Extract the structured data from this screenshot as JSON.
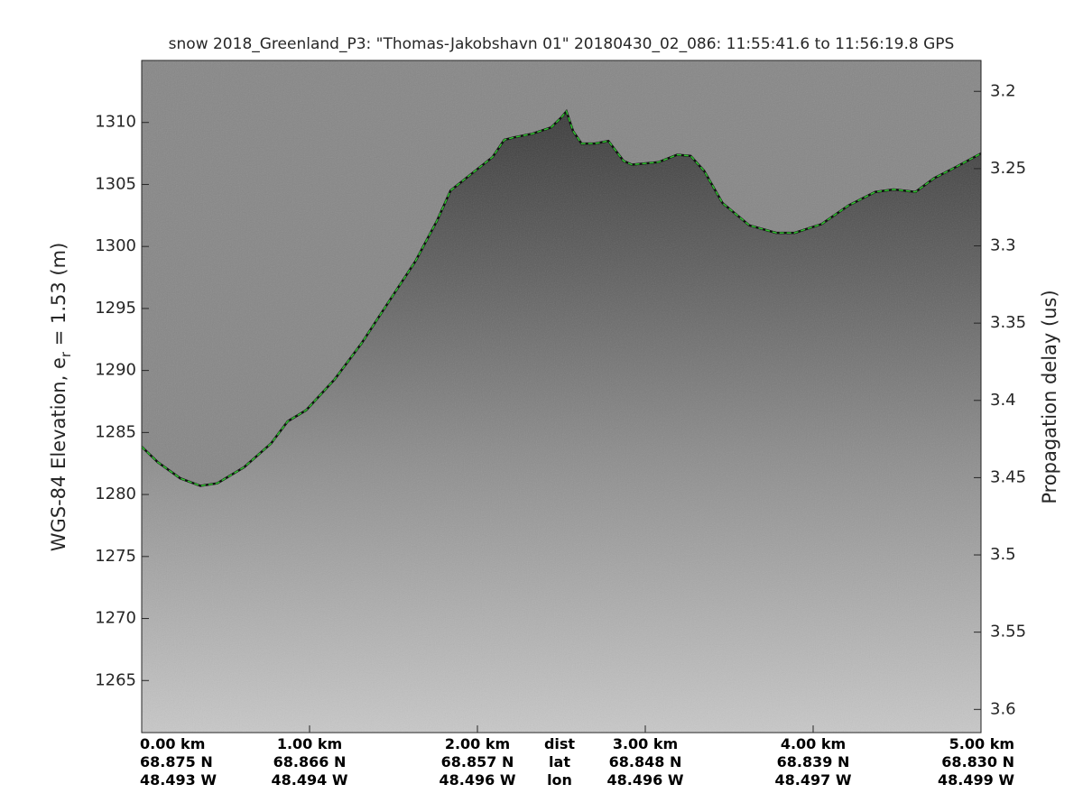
{
  "chart_data": {
    "type": "echogram",
    "title": "snow 2018_Greenland_P3: \"Thomas-Jakobshavn 01\"  20180430_02_086: 11:55:41.6 to 11:56:19.8 GPS",
    "ylabel": {
      "text": "WGS-84 Elevation, e",
      "subscript": "r",
      "rest": " = 1.53 (m)"
    },
    "y2label": "Propagation delay (us)",
    "xlim": [
      0,
      5
    ],
    "ylim": [
      1260.8,
      1315.0
    ],
    "y2lim": [
      3.615,
      3.18
    ],
    "yticks": [
      1265,
      1270,
      1275,
      1280,
      1285,
      1290,
      1295,
      1300,
      1305,
      1310
    ],
    "y2ticks": [
      3.2,
      3.25,
      3.3,
      3.35,
      3.4,
      3.45,
      3.5,
      3.55,
      3.6
    ],
    "xticks": [
      {
        "value": 0,
        "label": "0.00 km"
      },
      {
        "value": 1,
        "label": "1.00 km"
      },
      {
        "value": 2,
        "label": "2.00 km"
      },
      {
        "value": 3,
        "label": "3.00 km"
      },
      {
        "value": 4,
        "label": "4.00 km"
      },
      {
        "value": 5,
        "label": "5.00 km"
      }
    ],
    "tick_lat": [
      "68.875 N",
      "68.866 N",
      "68.857 N",
      "68.848 N",
      "68.839 N",
      "68.830 N"
    ],
    "tick_lon": [
      "48.493 W",
      "48.494 W",
      "48.496 W",
      "48.496 W",
      "48.497 W",
      "48.499 W"
    ],
    "row_labels": [
      "dist",
      "lat",
      "lon"
    ],
    "series": [
      {
        "name": "surface",
        "color": "#22c322",
        "x": [
          0,
          0.097,
          0.23,
          0.35,
          0.45,
          0.61,
          0.77,
          0.87,
          0.98,
          1.15,
          1.31,
          1.47,
          1.63,
          1.76,
          1.84,
          1.95,
          2.09,
          2.16,
          2.22,
          2.33,
          2.44,
          2.5,
          2.53,
          2.57,
          2.62,
          2.7,
          2.78,
          2.87,
          2.92,
          3.08,
          3.19,
          3.27,
          3.35,
          3.46,
          3.62,
          3.78,
          3.89,
          4.05,
          4.21,
          4.37,
          4.48,
          4.61,
          4.72,
          4.85,
          5.0
        ],
        "values": [
          1283.85,
          1282.6,
          1281.3,
          1280.7,
          1280.9,
          1282.2,
          1284.1,
          1285.9,
          1286.8,
          1289.3,
          1292.2,
          1295.5,
          1298.8,
          1302.1,
          1304.5,
          1305.7,
          1307.2,
          1308.6,
          1308.8,
          1309.1,
          1309.6,
          1310.4,
          1310.9,
          1309.3,
          1308.3,
          1308.3,
          1308.5,
          1306.9,
          1306.6,
          1306.8,
          1307.4,
          1307.3,
          1306.1,
          1303.5,
          1301.7,
          1301.1,
          1301.1,
          1301.8,
          1303.3,
          1304.4,
          1304.6,
          1304.4,
          1305.5,
          1306.4,
          1307.5
        ]
      }
    ]
  }
}
